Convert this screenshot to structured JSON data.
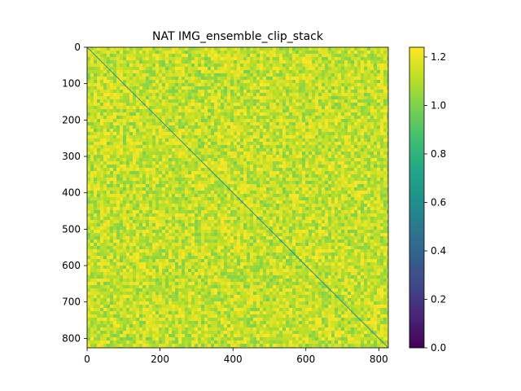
{
  "chart_data": {
    "type": "heatmap",
    "title": "NAT IMG_ensemble_clip_stack",
    "xlabel": "",
    "ylabel": "",
    "matrix_size": 826,
    "xlim": [
      0,
      826
    ],
    "ylim": [
      826,
      0
    ],
    "x_ticks": [
      0,
      200,
      400,
      600,
      800
    ],
    "y_ticks": [
      0,
      100,
      200,
      300,
      400,
      500,
      600,
      700,
      800
    ],
    "x_tick_labels": [
      "0",
      "200",
      "400",
      "600",
      "800"
    ],
    "y_tick_labels": [
      "0",
      "100",
      "200",
      "300",
      "400",
      "500",
      "600",
      "700",
      "800"
    ],
    "colormap": "viridis",
    "color_range": [
      0.0,
      1.24
    ],
    "colorbar_ticks": [
      0.0,
      0.2,
      0.4,
      0.6,
      0.8,
      1.0,
      1.2
    ],
    "colorbar_tick_labels": [
      "0.0",
      "0.2",
      "0.4",
      "0.6",
      "0.8",
      "1.0",
      "1.2"
    ],
    "off_diagonal_value_range": [
      0.85,
      1.24
    ],
    "off_diagonal_typical_value": 1.0,
    "diagonal_value": 0.62,
    "grid": false,
    "colors": {
      "viridis_low": "#440154",
      "viridis_mid": "#21918c",
      "viridis_high": "#fde725",
      "background_green": "#8ccf4a",
      "diagonal_line": "#2a8fbd"
    }
  }
}
